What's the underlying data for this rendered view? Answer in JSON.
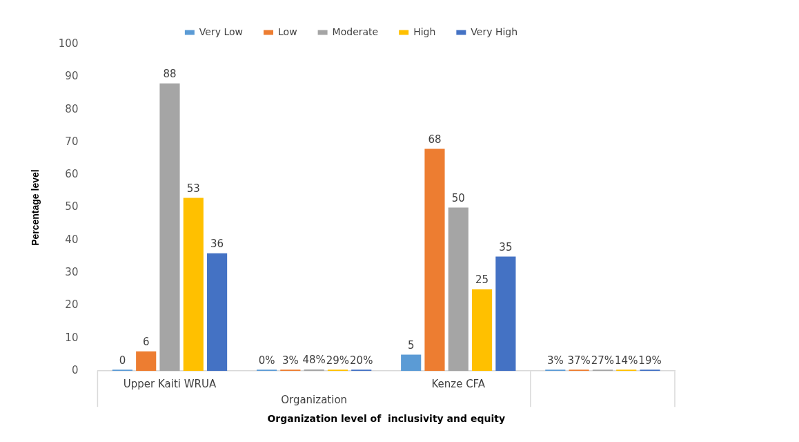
{
  "chart_data": {
    "type": "bar",
    "categories": [
      "Upper Kaiti WRUA",
      null,
      "Kenze CFA",
      null
    ],
    "series": [
      {
        "name": "Very Low",
        "color": "#5b9bd5",
        "values": [
          0,
          0,
          5,
          0.03
        ],
        "value_labels": [
          "0",
          "0%",
          "5",
          "3%"
        ]
      },
      {
        "name": "Low",
        "color": "#ed7d31",
        "values": [
          6,
          0.03,
          68,
          0.37
        ],
        "value_labels": [
          "6",
          "3%",
          "68",
          "37%"
        ]
      },
      {
        "name": "Moderate",
        "color": "#a5a5a5",
        "values": [
          88,
          0.48,
          50,
          0.27
        ],
        "value_labels": [
          "88",
          "48%",
          "50",
          "27%"
        ]
      },
      {
        "name": "High",
        "color": "#ffc000",
        "values": [
          53,
          0.29,
          25,
          0.14
        ],
        "value_labels": [
          "53",
          "29%",
          "25",
          "14%"
        ]
      },
      {
        "name": "Very High",
        "color": "#4472c4",
        "values": [
          36,
          0.2,
          35,
          0.19
        ],
        "value_labels": [
          "36",
          "20%",
          "35",
          "19%"
        ]
      }
    ],
    "xlabel": "Organization level of  inclusivity and equity",
    "ylabel": "Percentage level",
    "annotations": [
      "Organization"
    ],
    "ylim": [
      0,
      100
    ],
    "yticks": [
      0,
      10,
      20,
      30,
      40,
      50,
      60,
      70,
      80,
      90,
      100
    ],
    "grid": false,
    "legend": "top"
  }
}
